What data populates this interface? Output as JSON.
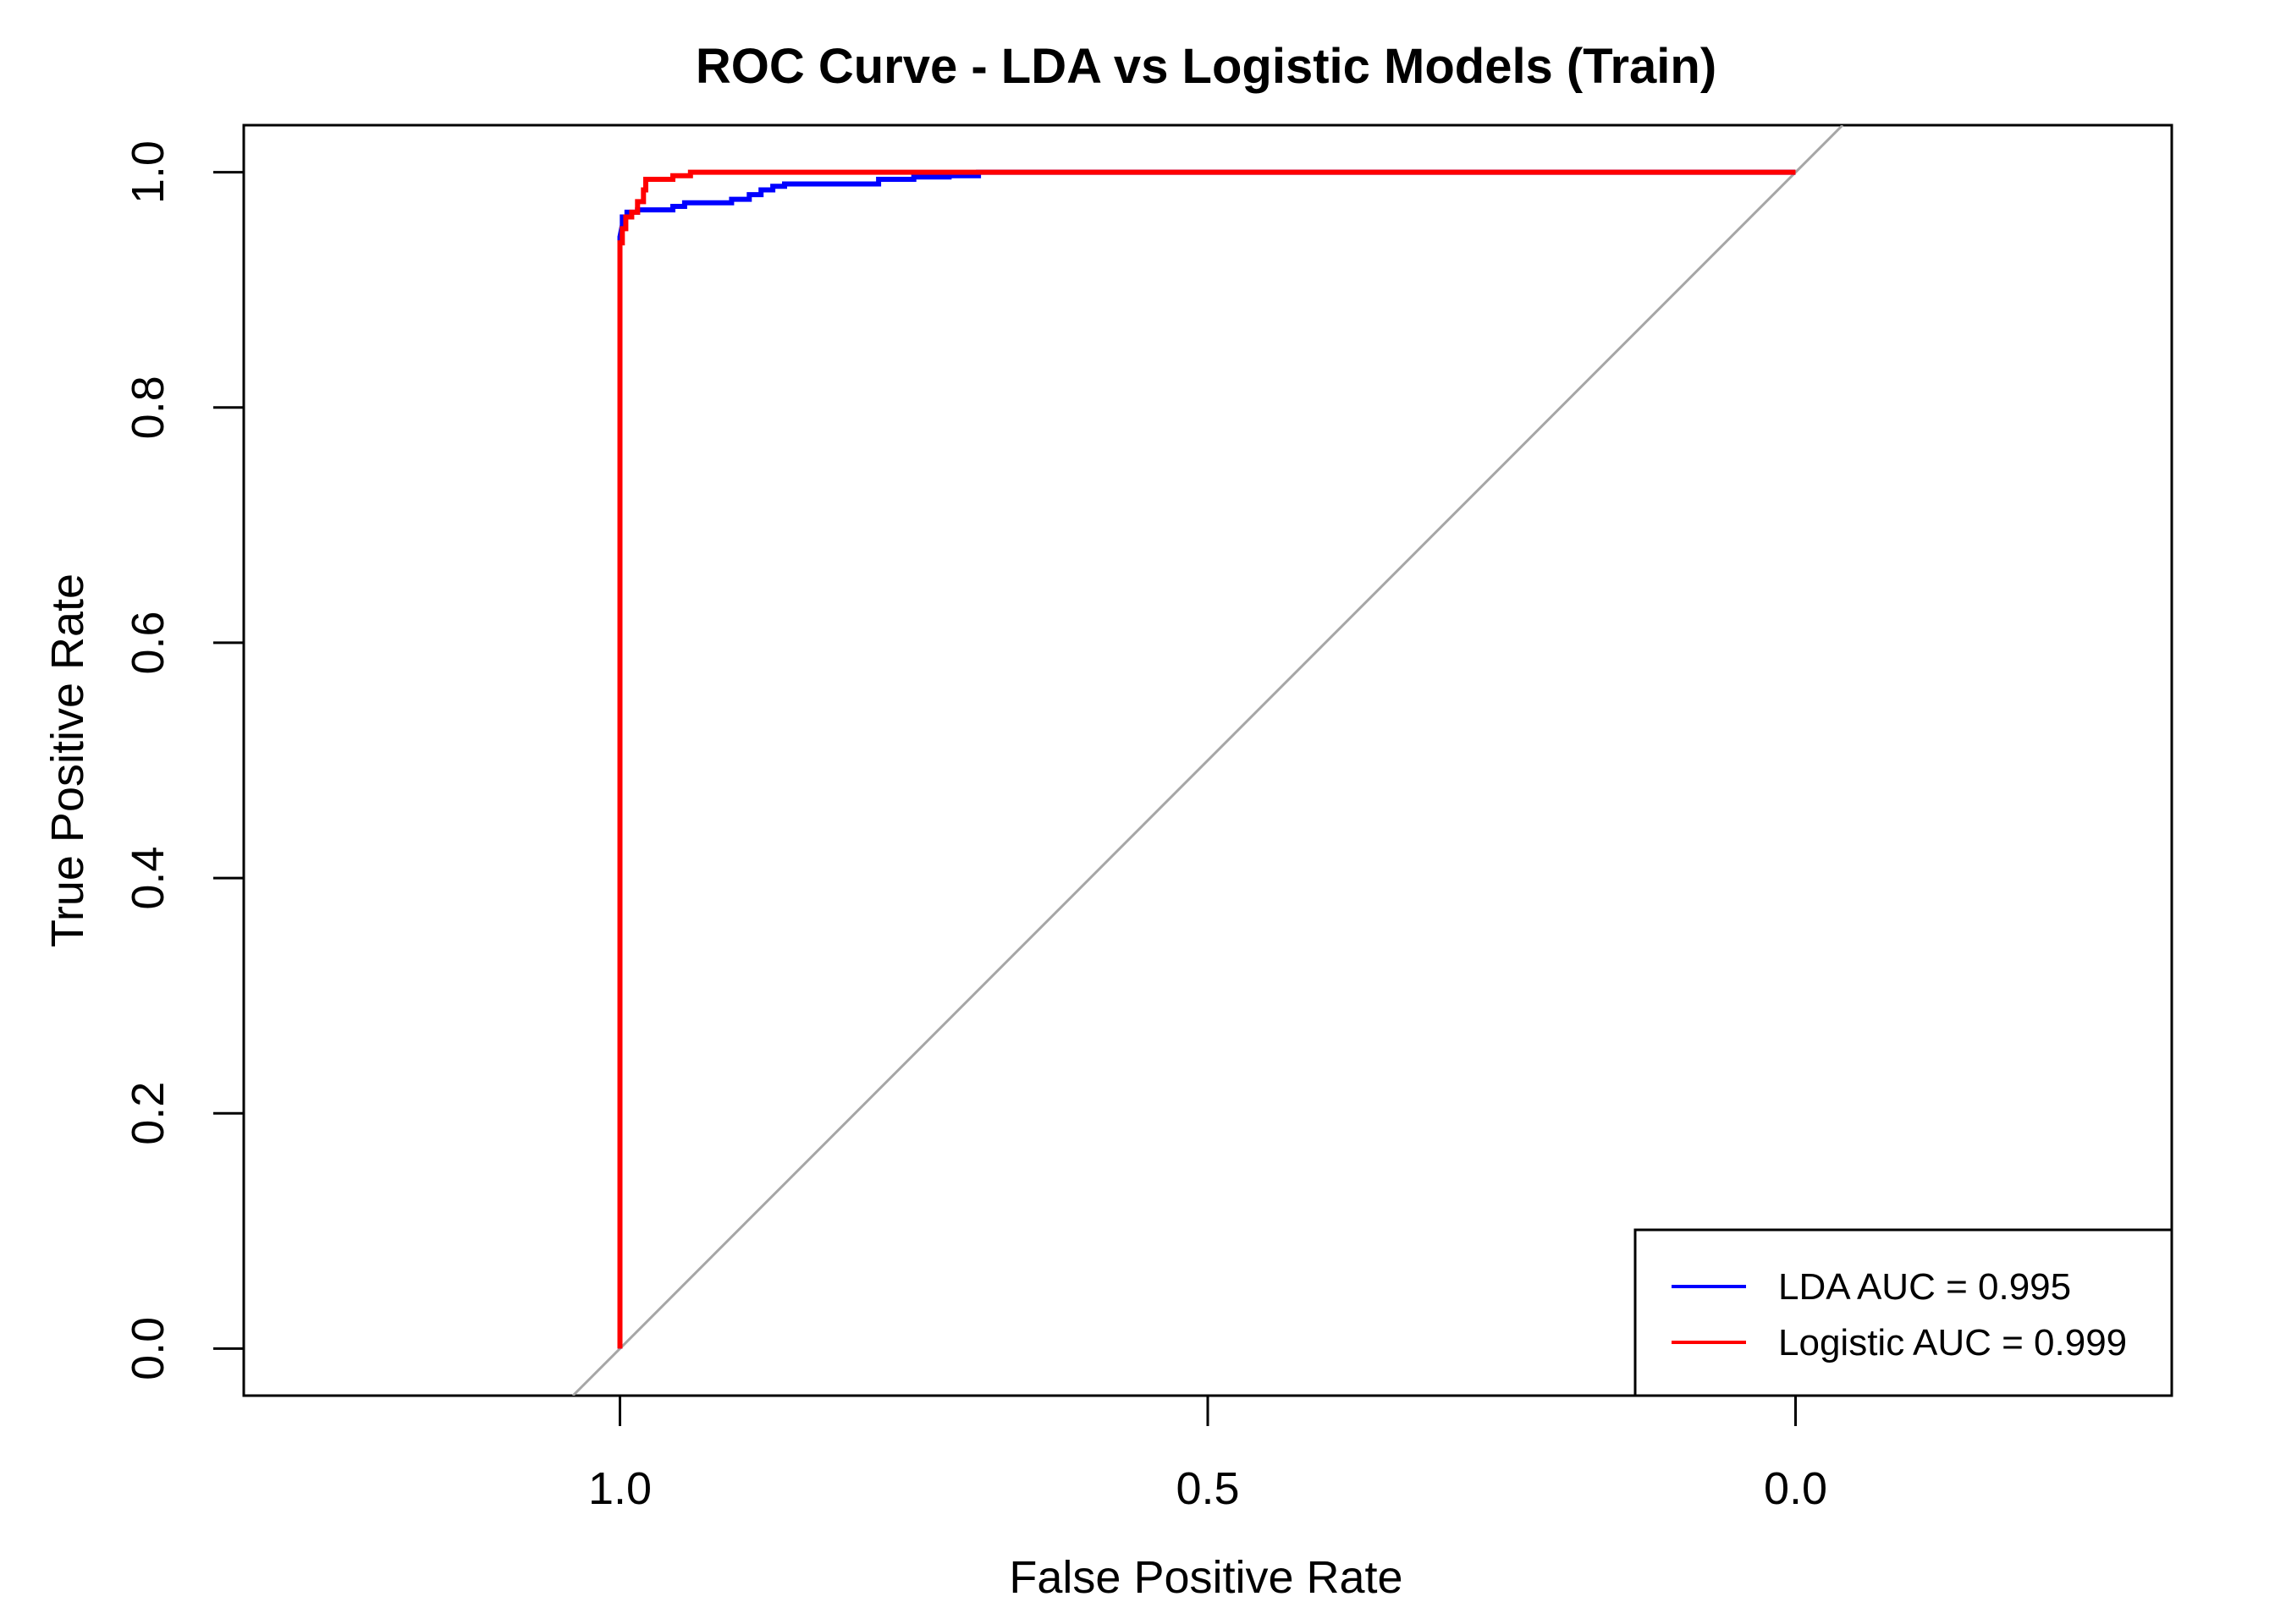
{
  "chart_data": {
    "type": "line",
    "title": "ROC Curve - LDA vs Logistic Models (Train)",
    "xlabel": "False Positive Rate",
    "ylabel": "True Positive Rate",
    "xlim": [
      1.32,
      -0.32
    ],
    "ylim": [
      -0.04,
      1.04
    ],
    "x_reversed": true,
    "grid": false,
    "legend_position": "bottom-right",
    "x_ticks": [
      {
        "value": 1.0,
        "label": "1.0"
      },
      {
        "value": 0.5,
        "label": "0.5"
      },
      {
        "value": 0.0,
        "label": "0.0"
      }
    ],
    "y_ticks": [
      {
        "value": 0.0,
        "label": "0.0"
      },
      {
        "value": 0.2,
        "label": "0.2"
      },
      {
        "value": 0.4,
        "label": "0.4"
      },
      {
        "value": 0.6,
        "label": "0.6"
      },
      {
        "value": 0.8,
        "label": "0.8"
      },
      {
        "value": 1.0,
        "label": "1.0"
      }
    ],
    "reference_line": {
      "points": [
        [
          1.04,
          -0.04
        ],
        [
          -0.04,
          1.04
        ]
      ],
      "color": "#a6a6a6"
    },
    "series": [
      {
        "name": "LDA AUC = 0.995",
        "color": "#0000ff",
        "points": [
          [
            1.0,
            0.0
          ],
          [
            1.0,
            0.945
          ],
          [
            0.998,
            0.955
          ],
          [
            0.998,
            0.962
          ],
          [
            0.994,
            0.962
          ],
          [
            0.994,
            0.966
          ],
          [
            0.985,
            0.966
          ],
          [
            0.985,
            0.968
          ],
          [
            0.955,
            0.968
          ],
          [
            0.955,
            0.971
          ],
          [
            0.945,
            0.971
          ],
          [
            0.945,
            0.974
          ],
          [
            0.905,
            0.974
          ],
          [
            0.905,
            0.977
          ],
          [
            0.89,
            0.977
          ],
          [
            0.89,
            0.981
          ],
          [
            0.88,
            0.981
          ],
          [
            0.88,
            0.985
          ],
          [
            0.87,
            0.985
          ],
          [
            0.87,
            0.988
          ],
          [
            0.86,
            0.988
          ],
          [
            0.86,
            0.99
          ],
          [
            0.78,
            0.99
          ],
          [
            0.78,
            0.992
          ],
          [
            0.78,
            0.994
          ],
          [
            0.75,
            0.994
          ],
          [
            0.75,
            0.996
          ],
          [
            0.72,
            0.996
          ],
          [
            0.72,
            0.997
          ],
          [
            0.695,
            0.997
          ],
          [
            0.695,
            1.0
          ],
          [
            0.0,
            1.0
          ]
        ]
      },
      {
        "name": "Logistic AUC = 0.999",
        "color": "#ff0000",
        "points": [
          [
            1.0,
            0.0
          ],
          [
            1.0,
            0.94
          ],
          [
            0.998,
            0.94
          ],
          [
            0.998,
            0.952
          ],
          [
            0.995,
            0.952
          ],
          [
            0.995,
            0.962
          ],
          [
            0.99,
            0.962
          ],
          [
            0.99,
            0.966
          ],
          [
            0.985,
            0.966
          ],
          [
            0.985,
            0.975
          ],
          [
            0.98,
            0.975
          ],
          [
            0.98,
            0.985
          ],
          [
            0.978,
            0.985
          ],
          [
            0.978,
            0.994
          ],
          [
            0.955,
            0.994
          ],
          [
            0.955,
            0.997
          ],
          [
            0.94,
            0.997
          ],
          [
            0.94,
            1.0
          ],
          [
            0.0,
            1.0
          ]
        ]
      }
    ]
  }
}
